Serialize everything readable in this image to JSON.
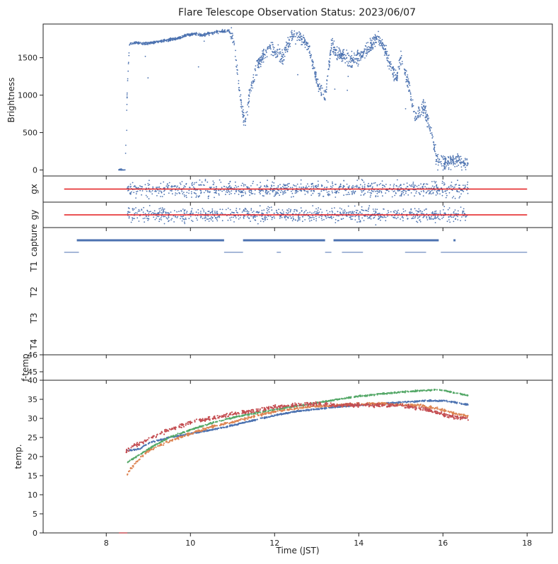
{
  "title": "Flare Telescope Observation Status: 2023/06/07",
  "colors": {
    "blue": "#4c72b0",
    "orange": "#dd8452",
    "green": "#55a868",
    "red": "#c44e52",
    "limit": "#e31a1c",
    "axis": "#222222"
  },
  "chart_data": [
    {
      "panel": "brightness",
      "type": "scatter",
      "ylabel": "Brightness",
      "xlabel": "",
      "xlim": [
        6.5,
        18.6
      ],
      "ylim": [
        -80,
        1950
      ],
      "yticks": [
        0,
        500,
        1000,
        1500
      ],
      "series": [
        {
          "color": "#4c72b0",
          "x": [
            8.3,
            8.45,
            8.5,
            8.55,
            8.7,
            8.9,
            9.1,
            9.3,
            9.5,
            9.7,
            9.9,
            10.1,
            10.3,
            10.5,
            10.7,
            10.9,
            11.0,
            11.1,
            11.2,
            11.3,
            11.4,
            11.55,
            11.7,
            11.85,
            12.0,
            12.2,
            12.4,
            12.6,
            12.75,
            12.9,
            13.05,
            13.2,
            13.35,
            13.5,
            13.7,
            13.9,
            14.0,
            14.2,
            14.4,
            14.55,
            14.75,
            14.9,
            15.0,
            15.2,
            15.35,
            15.55,
            15.7,
            15.85,
            16.0,
            16.15,
            16.3,
            16.45,
            16.6
          ],
          "y": [
            0,
            0,
            1100,
            1680,
            1700,
            1690,
            1700,
            1720,
            1740,
            1760,
            1800,
            1820,
            1800,
            1830,
            1850,
            1860,
            1800,
            1400,
            900,
            600,
            1000,
            1350,
            1500,
            1650,
            1600,
            1500,
            1800,
            1780,
            1700,
            1450,
            1100,
            950,
            1650,
            1550,
            1500,
            1450,
            1500,
            1600,
            1750,
            1700,
            1400,
            1200,
            1500,
            1100,
            700,
            850,
            550,
            150,
            80,
            120,
            150,
            60,
            110
          ]
        }
      ]
    },
    {
      "panel": "gx",
      "type": "scatter",
      "ylabel": "gx",
      "xlabel": "",
      "xlim": [
        6.5,
        18.6
      ],
      "ylim": [
        -1,
        1
      ],
      "series": [
        {
          "color": "#4c72b0",
          "x": [
            8.5,
            16.6
          ],
          "y": [
            0,
            0
          ]
        }
      ],
      "reference_line": {
        "x": [
          7.0,
          18.0
        ],
        "y": 0,
        "color": "#e31a1c"
      }
    },
    {
      "panel": "gy",
      "type": "scatter",
      "ylabel": "gy",
      "xlabel": "",
      "xlim": [
        6.5,
        18.6
      ],
      "ylim": [
        -1,
        1
      ],
      "series": [
        {
          "color": "#4c72b0",
          "x": [
            8.5,
            16.6
          ],
          "y": [
            0,
            0
          ]
        }
      ],
      "reference_line": {
        "x": [
          7.0,
          18.0
        ],
        "y": 0,
        "color": "#e31a1c"
      }
    },
    {
      "panel": "status",
      "type": "scatter",
      "xlabel": "",
      "categories": [
        "capture",
        "T1",
        "T2",
        "T3",
        "T4"
      ],
      "xlim": [
        6.5,
        18.6
      ],
      "series": [
        {
          "name": "",
          "row": "capture",
          "color": "#4c72b0",
          "segments": [
            [
              7.3,
              10.8
            ],
            [
              11.25,
              13.2
            ],
            [
              13.4,
              15.9
            ],
            [
              16.25,
              16.3
            ]
          ]
        },
        {
          "name": "",
          "row": "capture-lower",
          "color": "#4c72b0",
          "segments": [
            [
              7.0,
              7.35
            ],
            [
              10.8,
              11.25
            ],
            [
              12.05,
              12.15
            ],
            [
              13.2,
              13.35
            ],
            [
              13.6,
              14.1
            ],
            [
              15.1,
              15.6
            ],
            [
              15.95,
              18.0
            ]
          ]
        }
      ]
    },
    {
      "panel": "f-temp",
      "type": "line",
      "ylabel": "f-temp",
      "xlabel": "",
      "xlim": [
        6.5,
        18.6
      ],
      "ylim": [
        44.5,
        46
      ],
      "yticks": [
        45,
        46
      ],
      "series": []
    },
    {
      "panel": "temp",
      "type": "scatter",
      "ylabel": "temp.",
      "xlabel": "Time (JST)",
      "xlim": [
        6.5,
        18.6
      ],
      "ylim": [
        0,
        40
      ],
      "yticks": [
        0,
        5,
        10,
        15,
        20,
        25,
        30,
        35,
        40
      ],
      "xticks": [
        8,
        10,
        12,
        14,
        16,
        18
      ],
      "series": [
        {
          "name": "",
          "color": "#4c72b0",
          "x": [
            8.5,
            8.8,
            9.0,
            9.5,
            10.0,
            10.5,
            11.0,
            11.5,
            12.0,
            12.5,
            13.0,
            13.5,
            14.0,
            14.5,
            15.0,
            15.5,
            16.0,
            16.3,
            16.6
          ],
          "y": [
            21.5,
            22.0,
            23.5,
            25.0,
            26.0,
            27.0,
            28.2,
            29.5,
            30.8,
            31.8,
            32.5,
            33.0,
            33.5,
            33.8,
            34.2,
            34.6,
            34.6,
            34.2,
            33.6
          ]
        },
        {
          "name": "",
          "color": "#dd8452",
          "x": [
            8.5,
            8.6,
            8.8,
            9.0,
            9.5,
            10.0,
            10.5,
            11.0,
            11.5,
            12.0,
            12.5,
            13.0,
            13.5,
            14.0,
            14.5,
            15.0,
            15.5,
            16.0,
            16.3,
            16.6
          ],
          "y": [
            15.5,
            17.0,
            19.5,
            21.5,
            24.0,
            26.0,
            27.8,
            29.0,
            30.5,
            31.8,
            32.6,
            33.2,
            33.5,
            33.8,
            33.9,
            33.6,
            33.4,
            32.2,
            31.2,
            30.6
          ]
        },
        {
          "name": "",
          "color": "#55a868",
          "x": [
            8.5,
            8.8,
            9.0,
            9.5,
            10.0,
            10.5,
            11.0,
            11.5,
            12.0,
            12.5,
            13.0,
            13.5,
            14.0,
            14.5,
            15.0,
            15.5,
            15.8,
            16.0,
            16.3,
            16.6
          ],
          "y": [
            18.5,
            20.5,
            22.0,
            25.0,
            27.0,
            28.8,
            30.2,
            31.3,
            32.3,
            33.2,
            34.1,
            35.0,
            35.8,
            36.4,
            36.9,
            37.3,
            37.5,
            37.4,
            36.6,
            36.0
          ]
        },
        {
          "name": "",
          "color": "#c44e52",
          "x": [
            8.45,
            8.6,
            8.8,
            9.0,
            9.5,
            10.0,
            10.5,
            11.0,
            11.5,
            12.0,
            12.5,
            13.0,
            13.5,
            14.0,
            14.5,
            15.0,
            15.5,
            16.0,
            16.3,
            16.6
          ],
          "y": [
            21.0,
            22.5,
            23.5,
            24.5,
            27.0,
            29.0,
            30.0,
            31.2,
            32.0,
            33.0,
            33.6,
            33.8,
            33.4,
            33.5,
            33.5,
            33.3,
            32.6,
            31.0,
            30.3,
            30.0
          ]
        }
      ]
    }
  ]
}
